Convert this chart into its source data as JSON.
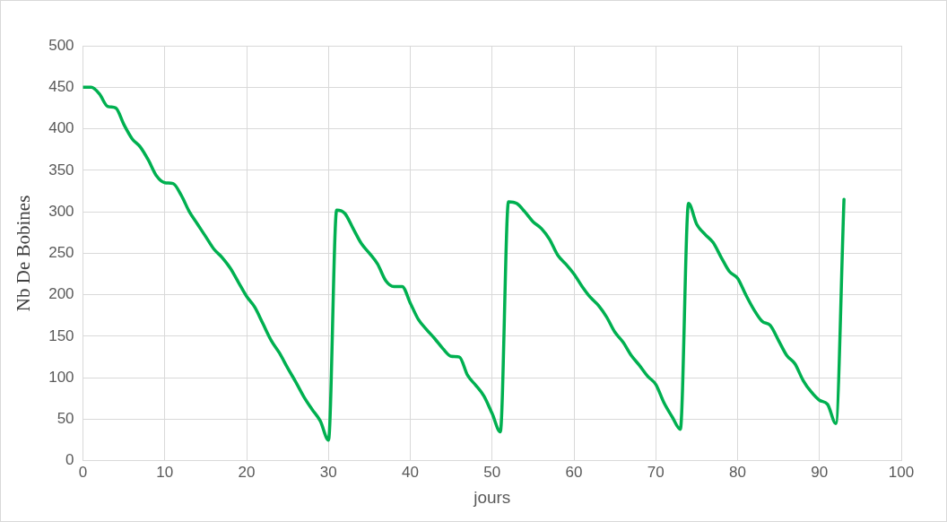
{
  "chart_data": {
    "type": "line",
    "xlabel": "jours",
    "ylabel": "Nb De Bobines",
    "xlim": [
      0,
      100
    ],
    "xticks": [
      0,
      10,
      20,
      30,
      40,
      50,
      60,
      70,
      80,
      90,
      100
    ],
    "ylim": [
      0,
      500
    ],
    "yticks": [
      0,
      50,
      100,
      150,
      200,
      250,
      300,
      350,
      400,
      450,
      500
    ],
    "grid": true,
    "legend": false,
    "marker": "none",
    "line_style": "solid",
    "x": [
      0,
      1,
      2,
      3,
      4,
      5,
      6,
      7,
      8,
      9,
      10,
      11,
      12,
      13,
      14,
      15,
      16,
      17,
      18,
      19,
      20,
      21,
      22,
      23,
      24,
      25,
      26,
      27,
      28,
      29,
      30,
      31,
      32,
      33,
      34,
      35,
      36,
      37,
      38,
      39,
      40,
      41,
      42,
      43,
      44,
      45,
      46,
      47,
      48,
      49,
      50,
      51,
      52,
      53,
      54,
      55,
      56,
      57,
      58,
      59,
      60,
      61,
      62,
      63,
      64,
      65,
      66,
      67,
      68,
      69,
      70,
      71,
      72,
      73,
      74,
      75,
      76,
      77,
      78,
      79,
      80,
      81,
      82,
      83,
      84,
      85,
      86,
      87,
      88,
      89,
      90,
      91,
      92,
      93
    ],
    "series": [
      {
        "color": "#00b050",
        "values": [
          450,
          450,
          442,
          427,
          425,
          405,
          388,
          378,
          362,
          343,
          335,
          334,
          320,
          300,
          285,
          270,
          255,
          245,
          232,
          215,
          198,
          185,
          165,
          145,
          130,
          112,
          95,
          77,
          62,
          48,
          25,
          302,
          298,
          280,
          262,
          250,
          237,
          217,
          210,
          210,
          190,
          170,
          158,
          147,
          135,
          126,
          125,
          103,
          91,
          78,
          57,
          35,
          312,
          310,
          300,
          288,
          280,
          267,
          248,
          237,
          225,
          210,
          197,
          187,
          173,
          155,
          143,
          127,
          115,
          102,
          92,
          70,
          53,
          38,
          310,
          285,
          273,
          263,
          245,
          228,
          220,
          200,
          182,
          168,
          163,
          145,
          127,
          117,
          97,
          83,
          73,
          68,
          45,
          315
        ]
      }
    ]
  }
}
